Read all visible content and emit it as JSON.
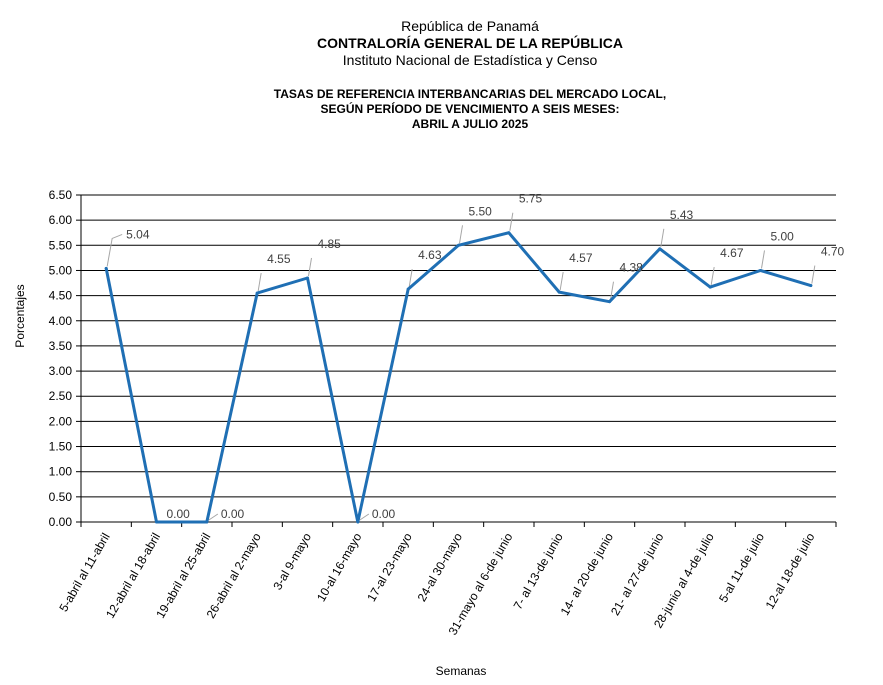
{
  "header": {
    "country": "República de Panamá",
    "agency": "CONTRALORÍA GENERAL DE LA REPÚBLICA",
    "institute": "Instituto Nacional de Estadística y Censo"
  },
  "chart_data": {
    "type": "line",
    "title": [
      "TASAS DE REFERENCIA INTERBANCARIAS DEL MERCADO LOCAL,",
      "SEGÚN PERÍODO DE VENCIMIENTO A SEIS MESES:",
      "ABRIL A JULIO 2025"
    ],
    "xlabel": "Semanas",
    "ylabel": "Porcentajes",
    "ylim": [
      0,
      6.5
    ],
    "ytick_step": 0.5,
    "yticks": [
      "0.00",
      "0.50",
      "1.00",
      "1.50",
      "2.00",
      "2.50",
      "3.00",
      "3.50",
      "4.00",
      "4.50",
      "5.00",
      "5.50",
      "6.00",
      "6.50"
    ],
    "grid": true,
    "line_color": "#1f6fb4",
    "categories": [
      "5-abril al 11-abril",
      "12-abril al 18-abril",
      "19-abril al 25-abril",
      "26-abril al 2-mayo",
      "3-al 9-mayo",
      "10-al 16-mayo",
      "17-al 23-mayo",
      "24-al 30-mayo",
      "31-mayo al 6-de junio",
      "7- al 13-de junio",
      "14- al 20-de junio",
      "21- al 27-de junio",
      "28-junio al 4-de julio",
      "5-al 11-de julio",
      "12-al 18-de julio"
    ],
    "values": [
      5.04,
      0.0,
      0.0,
      4.55,
      4.85,
      0.0,
      4.63,
      5.5,
      5.75,
      4.57,
      4.38,
      5.43,
      4.67,
      5.0,
      4.7
    ],
    "data_labels": [
      "5.04",
      "0.00",
      "0.00",
      "4.55",
      "4.85",
      "0.00",
      "4.63",
      "5.50",
      "5.75",
      "4.57",
      "4.38",
      "5.43",
      "4.67",
      "5.00",
      "4.70"
    ]
  }
}
